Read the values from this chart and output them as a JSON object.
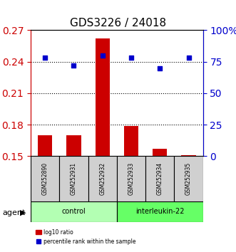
{
  "title": "GDS3226 / 24018",
  "samples": [
    "GSM252890",
    "GSM252931",
    "GSM252932",
    "GSM252933",
    "GSM252934",
    "GSM252935"
  ],
  "groups": [
    "control",
    "control",
    "control",
    "interleukin-22",
    "interleukin-22",
    "interleukin-22"
  ],
  "log10_ratio": [
    0.17,
    0.17,
    0.262,
    0.179,
    0.157,
    0.151
  ],
  "percentile_rank": [
    78,
    72,
    80,
    78,
    70,
    78
  ],
  "ylim_left": [
    0.15,
    0.27
  ],
  "ylim_right": [
    0,
    100
  ],
  "yticks_left": [
    0.15,
    0.18,
    0.21,
    0.24,
    0.27
  ],
  "yticks_right": [
    0,
    25,
    50,
    75,
    100
  ],
  "bar_color": "#cc0000",
  "dot_color": "#0000cc",
  "group_colors": {
    "control": "#b3ffb3",
    "interleukin-22": "#66ff66"
  },
  "xlabel_color_left": "#cc0000",
  "xlabel_color_right": "#0000cc",
  "background_color": "#ffffff",
  "plot_bg": "#ffffff",
  "label_bar": "log10 ratio",
  "label_dot": "percentile rank within the sample"
}
